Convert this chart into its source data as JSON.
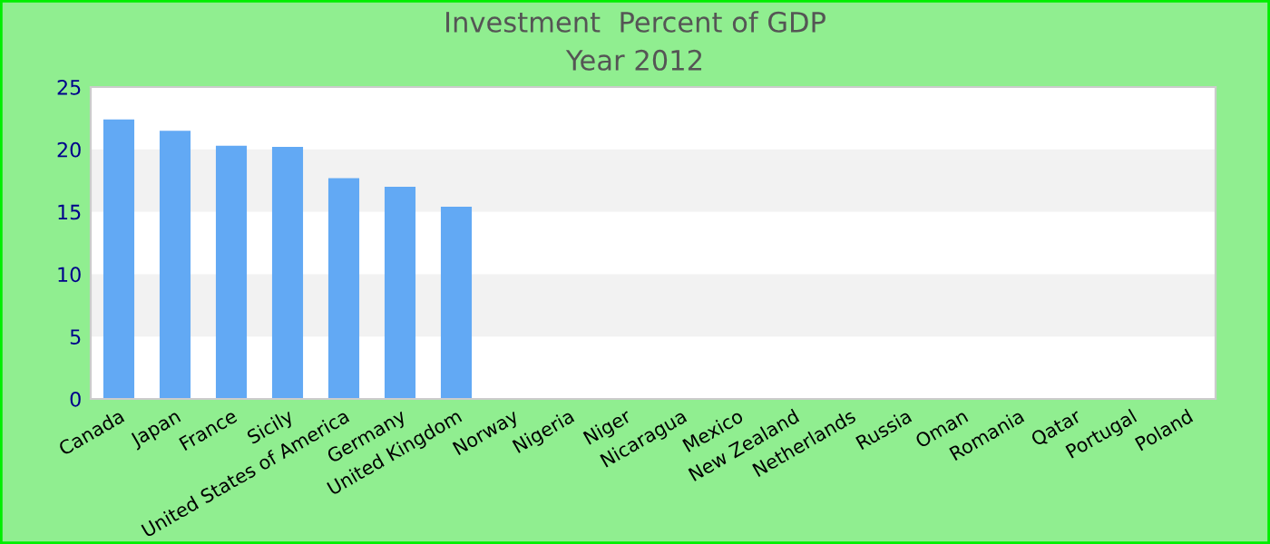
{
  "chart_data": {
    "type": "bar",
    "title": "Investment  Percent of GDP",
    "subtitle": "Year 2012",
    "categories": [
      "Canada",
      "Japan",
      "France",
      "Sicily",
      "United States of America",
      "Germany",
      "United Kingdom",
      "Norway",
      "Nigeria",
      "Niger",
      "Nicaragua",
      "Mexico",
      "New Zealand",
      "Netherlands",
      "Russia",
      "Oman",
      "Romania",
      "Qatar",
      "Portugal",
      "Poland"
    ],
    "values": [
      22.4,
      21.5,
      20.3,
      20.2,
      17.7,
      17.0,
      15.4,
      null,
      null,
      null,
      null,
      null,
      null,
      null,
      null,
      null,
      null,
      null,
      null,
      null
    ],
    "color": "#62a9f4",
    "ylim": [
      0,
      25
    ],
    "yticks": [
      0,
      5,
      10,
      15,
      20,
      25
    ],
    "bands": [
      {
        "axis": "y",
        "from": 5,
        "to": 10,
        "color": "#f2f2f2"
      },
      {
        "axis": "y",
        "from": 15,
        "to": 20,
        "color": "#f2f2f2"
      }
    ],
    "grid": false,
    "legend": false
  }
}
